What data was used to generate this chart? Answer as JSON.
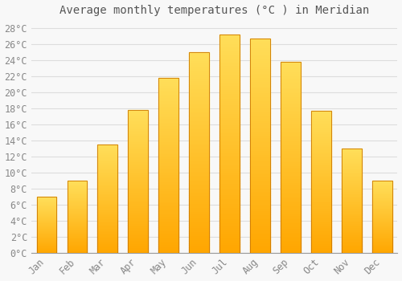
{
  "title": "Average monthly temperatures (°C ) in Meridian",
  "months": [
    "Jan",
    "Feb",
    "Mar",
    "Apr",
    "May",
    "Jun",
    "Jul",
    "Aug",
    "Sep",
    "Oct",
    "Nov",
    "Dec"
  ],
  "temperatures": [
    7.0,
    9.0,
    13.5,
    17.8,
    21.8,
    25.0,
    27.2,
    26.7,
    23.8,
    17.7,
    13.0,
    9.0
  ],
  "bar_color_top": "#FFD966",
  "bar_color_bottom": "#FFA500",
  "bar_edge_color": "#CC7700",
  "background_color": "#f8f8f8",
  "plot_bg_color": "#f8f8f8",
  "grid_color": "#dddddd",
  "ylim": [
    0,
    29
  ],
  "yticks": [
    0,
    2,
    4,
    6,
    8,
    10,
    12,
    14,
    16,
    18,
    20,
    22,
    24,
    26,
    28
  ],
  "title_fontsize": 10,
  "tick_fontsize": 8.5,
  "bar_width": 0.65
}
